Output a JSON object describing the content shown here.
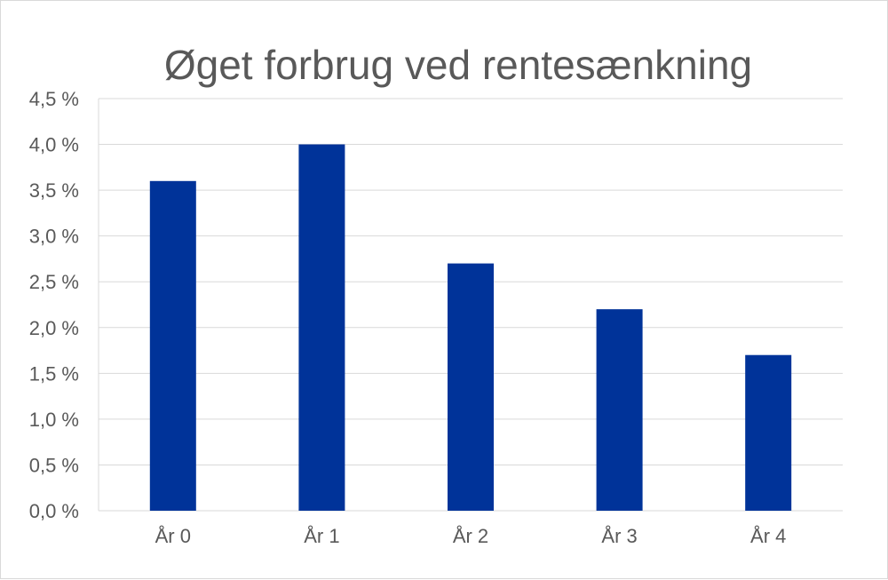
{
  "chart_data": {
    "type": "bar",
    "title": "Øget forbrug ved rentesænkning",
    "xlabel": "",
    "ylabel": "",
    "categories": [
      "År 0",
      "År 1",
      "År 2",
      "År 3",
      "År 4"
    ],
    "series": [
      {
        "values": [
          3.6,
          4.0,
          2.7,
          2.2,
          1.7
        ]
      }
    ],
    "ylim": [
      0,
      4.5
    ],
    "yticks": [
      0,
      0.5,
      1.0,
      1.5,
      2.0,
      2.5,
      3.0,
      3.5,
      4.0,
      4.5
    ],
    "ytick_labels": [
      "0,0 %",
      "0,5 %",
      "1,0 %",
      "1,5 %",
      "2,0 %",
      "2,5 %",
      "3,0 %",
      "3,5 %",
      "4,0 %",
      "4,5 %"
    ],
    "grid": true,
    "legend": "none",
    "bar_color": "#003399"
  }
}
